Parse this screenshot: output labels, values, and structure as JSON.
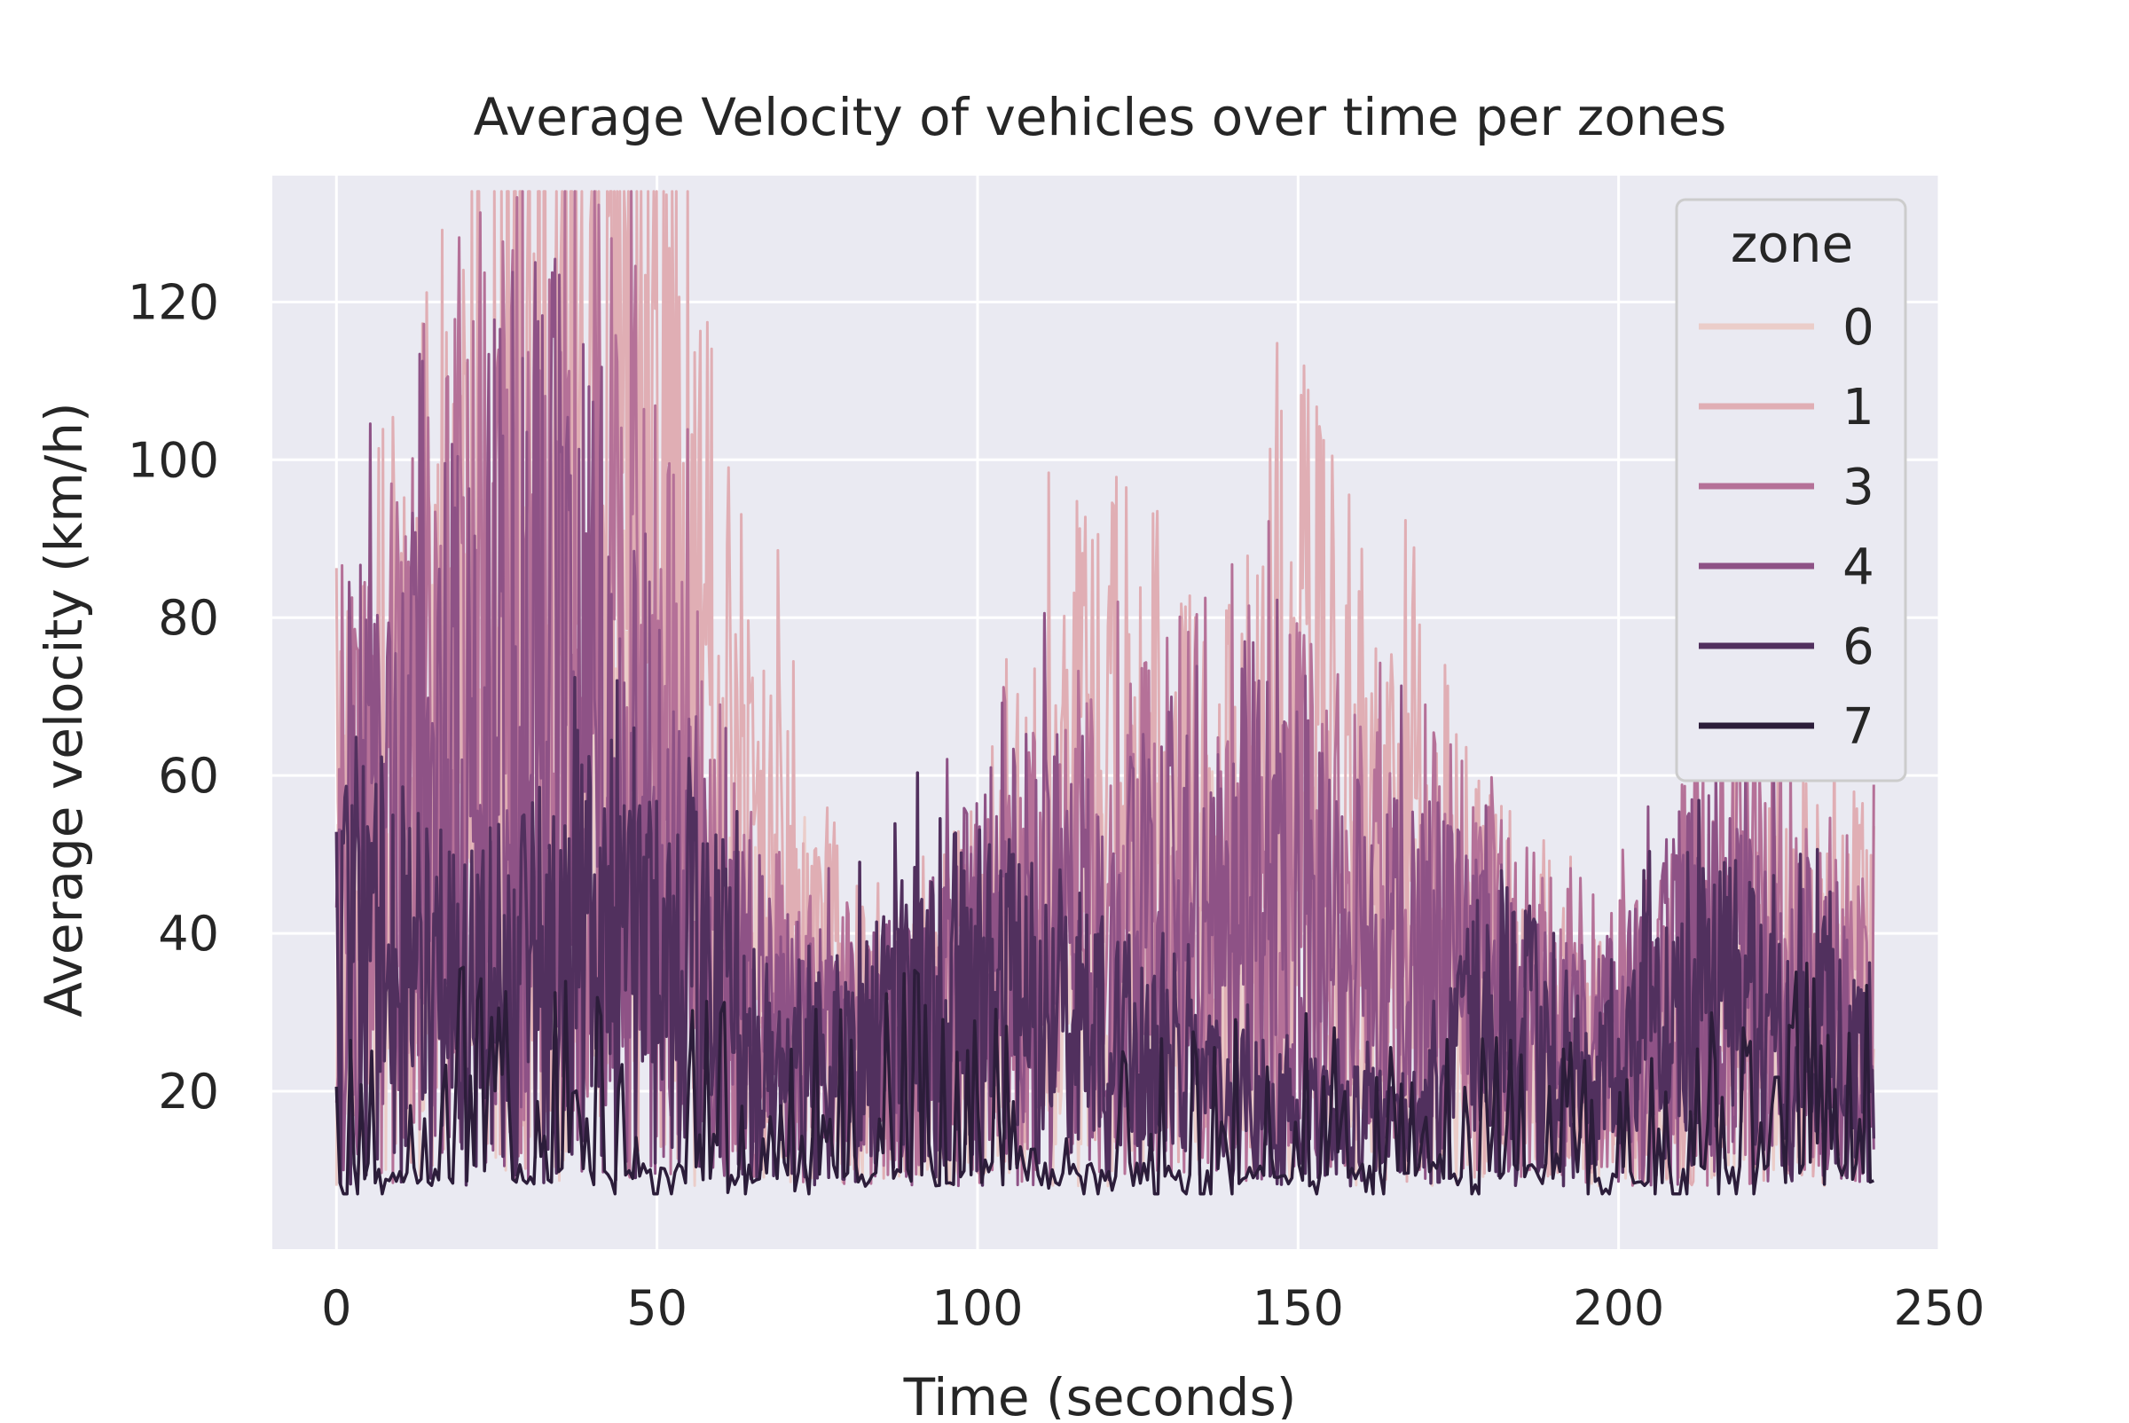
{
  "chart_data": {
    "type": "line",
    "title": "Average Velocity of vehicles over time per zones",
    "xlabel": "Time (seconds)",
    "ylabel": "Average velocity (km/h)",
    "xlim": [
      -10,
      250
    ],
    "ylim": [
      0,
      136
    ],
    "xticks": [
      0,
      50,
      100,
      150,
      200,
      250
    ],
    "yticks": [
      20,
      40,
      60,
      80,
      100,
      120
    ],
    "grid": true,
    "legend": {
      "title": "zone",
      "position": "top-right"
    },
    "series": [
      {
        "name": "0",
        "color": "#ebcdc9",
        "approximate_profile": {
          "x": [
            0,
            10,
            20,
            30,
            40,
            50,
            60,
            70,
            80,
            90,
            100,
            110,
            120,
            130,
            140,
            150,
            160,
            170,
            180,
            190,
            200,
            210,
            220,
            230,
            240
          ],
          "values": [
            35,
            40,
            45,
            48,
            46,
            42,
            30,
            25,
            20,
            18,
            22,
            25,
            28,
            30,
            28,
            30,
            28,
            26,
            20,
            18,
            16,
            15,
            18,
            20,
            22
          ]
        }
      },
      {
        "name": "1",
        "color": "#e0aeb4",
        "approximate_profile": {
          "x": [
            0,
            10,
            20,
            30,
            40,
            50,
            60,
            70,
            80,
            90,
            100,
            110,
            120,
            130,
            140,
            150,
            160,
            170,
            180,
            190,
            200,
            210,
            220,
            230,
            240
          ],
          "values": [
            45,
            55,
            70,
            90,
            95,
            80,
            55,
            35,
            25,
            22,
            30,
            40,
            55,
            45,
            40,
            60,
            45,
            40,
            30,
            28,
            18,
            20,
            28,
            30,
            30
          ]
        }
      },
      {
        "name": "3",
        "color": "#b57198",
        "approximate_profile": {
          "x": [
            0,
            10,
            20,
            30,
            40,
            50,
            60,
            70,
            80,
            90,
            100,
            110,
            120,
            130,
            140,
            150,
            160,
            170,
            180,
            190,
            200,
            210,
            220,
            230,
            240
          ],
          "values": [
            40,
            50,
            60,
            75,
            70,
            55,
            35,
            25,
            22,
            20,
            28,
            35,
            35,
            40,
            45,
            40,
            38,
            35,
            28,
            25,
            22,
            30,
            35,
            30,
            25
          ]
        }
      },
      {
        "name": "4",
        "color": "#8e5286",
        "approximate_profile": {
          "x": [
            0,
            10,
            20,
            30,
            40,
            50,
            60,
            70,
            80,
            90,
            100,
            110,
            120,
            130,
            140,
            150,
            160,
            170,
            180,
            190,
            200,
            210,
            220,
            230,
            240
          ],
          "values": [
            45,
            45,
            55,
            65,
            60,
            40,
            30,
            22,
            20,
            22,
            30,
            35,
            30,
            35,
            40,
            35,
            30,
            30,
            25,
            20,
            20,
            30,
            30,
            25,
            22
          ]
        }
      },
      {
        "name": "6",
        "color": "#51305e",
        "approximate_profile": {
          "x": [
            0,
            10,
            20,
            30,
            40,
            50,
            60,
            70,
            80,
            90,
            100,
            110,
            120,
            130,
            140,
            150,
            160,
            170,
            180,
            190,
            200,
            210,
            220,
            230,
            240
          ],
          "values": [
            40,
            30,
            25,
            30,
            40,
            30,
            28,
            15,
            20,
            25,
            28,
            25,
            22,
            18,
            15,
            14,
            12,
            12,
            25,
            20,
            15,
            30,
            25,
            22,
            18
          ]
        }
      },
      {
        "name": "7",
        "color": "#2c1d3a",
        "approximate_profile": {
          "x": [
            0,
            10,
            20,
            30,
            40,
            50,
            60,
            70,
            80,
            90,
            100,
            110,
            120,
            130,
            140,
            150,
            160,
            170,
            180,
            190,
            200,
            210,
            220,
            230,
            240
          ],
          "values": [
            10,
            8,
            15,
            12,
            15,
            10,
            12,
            9,
            15,
            18,
            12,
            10,
            9,
            9,
            9,
            9,
            9,
            9,
            8,
            8,
            8,
            9,
            9,
            20,
            15
          ]
        }
      }
    ]
  }
}
